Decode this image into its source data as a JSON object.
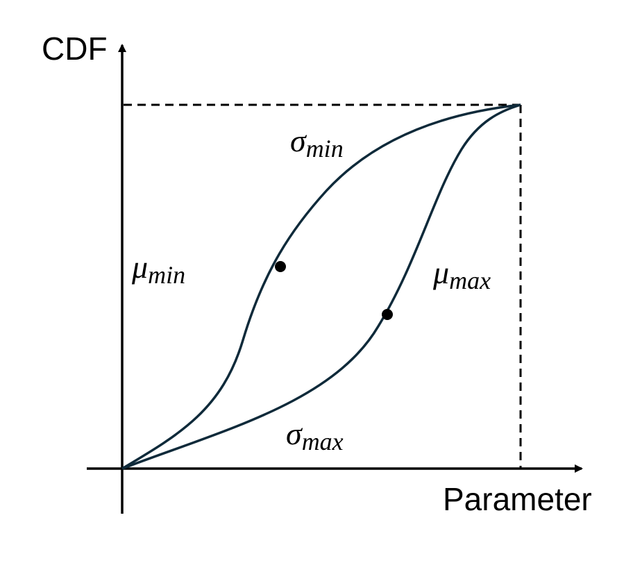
{
  "axes": {
    "y_label": "CDF",
    "x_label": "Parameter"
  },
  "curves": [
    {
      "name": "sigma-min",
      "symbol": "σ",
      "subscript": "min"
    },
    {
      "name": "sigma-max",
      "symbol": "σ",
      "subscript": "max"
    }
  ],
  "regions": [
    {
      "name": "mu-min",
      "symbol": "μ",
      "subscript": "min"
    },
    {
      "name": "mu-max",
      "symbol": "μ",
      "subscript": "max"
    }
  ],
  "colors": {
    "curve": "#0f2a3a",
    "axis": "#000000",
    "point": "#000000"
  }
}
